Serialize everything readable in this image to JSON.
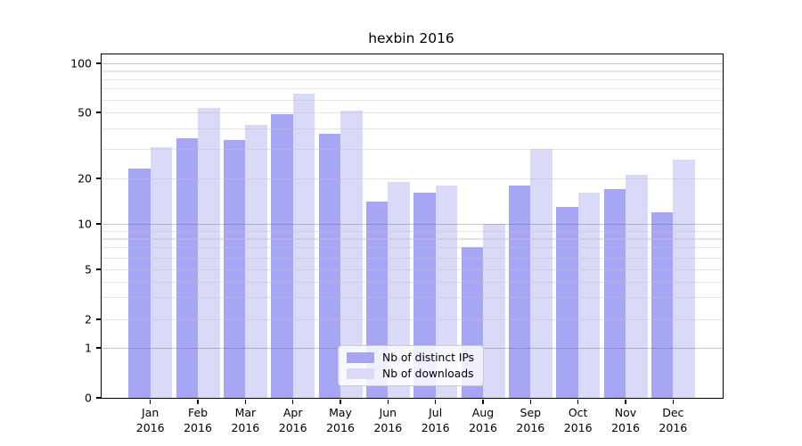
{
  "title": "hexbin 2016",
  "chart_data": {
    "type": "bar",
    "title": "hexbin 2016",
    "categories": [
      "Jan",
      "Feb",
      "Mar",
      "Apr",
      "May",
      "Jun",
      "Jul",
      "Aug",
      "Sep",
      "Oct",
      "Nov",
      "Dec"
    ],
    "year_label": "2016",
    "series": [
      {
        "name": "Nb of distinct IPs",
        "color": "#a6a6f4",
        "values": [
          23,
          35,
          34,
          49,
          37,
          14,
          16,
          7,
          18,
          13,
          17,
          12
        ]
      },
      {
        "name": "Nb of downloads",
        "color": "#d9d9f8",
        "values": [
          31,
          53,
          42,
          65,
          51,
          19,
          18,
          10,
          30,
          16,
          21,
          26
        ]
      }
    ],
    "xlabel": "",
    "ylabel": "",
    "yscale": "symlog",
    "ylim": [
      0,
      110
    ],
    "ytick_labels": [
      "0",
      "1",
      "2",
      "5",
      "10",
      "20",
      "50",
      "100"
    ],
    "major_grid_values": [
      1,
      10,
      100
    ],
    "minor_grid_values": [
      2,
      3,
      4,
      5,
      6,
      7,
      8,
      9,
      20,
      30,
      40,
      50,
      60,
      70,
      80,
      90
    ],
    "grid": "on",
    "legend_position": "lower center"
  }
}
